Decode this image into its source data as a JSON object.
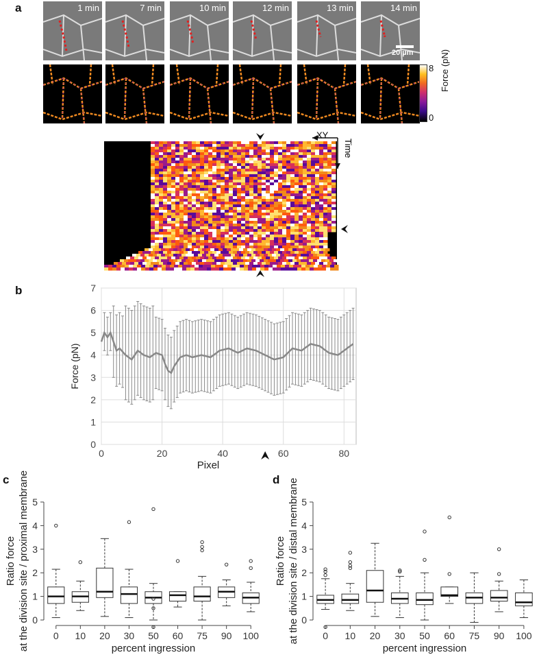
{
  "panels": {
    "a": "a",
    "b": "b",
    "c": "c",
    "d": "d"
  },
  "panel_a": {
    "timepoints": [
      "1 min",
      "7 min",
      "10 min",
      "12 min",
      "13 min",
      "14 min"
    ],
    "scalebar": "20 µm",
    "colorbar": {
      "label": "Force (pN)",
      "max": "8",
      "min": "0"
    },
    "kymo_axes": {
      "x": "XY",
      "y": "Time"
    }
  },
  "chart_data": [
    {
      "type": "line",
      "xlabel": "Pixel",
      "ylabel": "Force (pN)",
      "xlim": [
        0,
        84
      ],
      "ylim": [
        0,
        7
      ],
      "xticks": [
        "0",
        "20",
        "40",
        "60",
        "80"
      ],
      "yticks": [
        "0",
        "1",
        "2",
        "3",
        "4",
        "5",
        "6",
        "7"
      ],
      "grid": true,
      "mean_control_points": [
        [
          0,
          4.6
        ],
        [
          1,
          5.0
        ],
        [
          2,
          4.8
        ],
        [
          3,
          5.0
        ],
        [
          4,
          4.6
        ],
        [
          5,
          4.2
        ],
        [
          6,
          4.3
        ],
        [
          8,
          4.0
        ],
        [
          10,
          3.8
        ],
        [
          12,
          4.2
        ],
        [
          14,
          4.0
        ],
        [
          16,
          3.9
        ],
        [
          18,
          4.1
        ],
        [
          20,
          4.0
        ],
        [
          21,
          3.6
        ],
        [
          22,
          3.3
        ],
        [
          23,
          3.2
        ],
        [
          24,
          3.5
        ],
        [
          26,
          3.9
        ],
        [
          28,
          4.0
        ],
        [
          30,
          3.9
        ],
        [
          33,
          4.0
        ],
        [
          36,
          3.9
        ],
        [
          39,
          4.2
        ],
        [
          42,
          4.3
        ],
        [
          45,
          4.1
        ],
        [
          48,
          4.3
        ],
        [
          51,
          4.2
        ],
        [
          54,
          4.0
        ],
        [
          57,
          3.8
        ],
        [
          60,
          3.9
        ],
        [
          63,
          4.3
        ],
        [
          66,
          4.2
        ],
        [
          69,
          4.5
        ],
        [
          72,
          4.4
        ],
        [
          75,
          4.1
        ],
        [
          78,
          4.0
        ],
        [
          81,
          4.3
        ],
        [
          83,
          4.5
        ]
      ],
      "error_band": {
        "upper_approx": 5.7,
        "lower_approx": 2.6
      }
    },
    {
      "type": "box",
      "ylabel": "Ratio force\nat the division site / proximal membrane",
      "xlabel": "percent ingression",
      "categories": [
        "0",
        "10",
        "20",
        "30",
        "50",
        "60",
        "75",
        "90",
        "100"
      ],
      "ylim": [
        0,
        5
      ],
      "yticks": [
        "0",
        "1",
        "2",
        "3",
        "4",
        "5"
      ],
      "boxes": [
        {
          "min": 0.1,
          "q1": 0.7,
          "median": 1.0,
          "q3": 1.4,
          "max": 2.15,
          "outliers": [
            4.0
          ]
        },
        {
          "min": 0.4,
          "q1": 0.75,
          "median": 1.0,
          "q3": 1.2,
          "max": 1.65,
          "outliers": [
            2.45
          ]
        },
        {
          "min": 0.15,
          "q1": 0.95,
          "median": 1.2,
          "q3": 2.2,
          "max": 3.45,
          "outliers": []
        },
        {
          "min": 0.1,
          "q1": 0.7,
          "median": 1.1,
          "q3": 1.4,
          "max": 2.15,
          "outliers": [
            4.15
          ]
        },
        {
          "min": 0.0,
          "q1": 0.7,
          "median": 0.95,
          "q3": 1.2,
          "max": 1.55,
          "outliers": [
            0.5,
            0.9,
            4.7,
            -0.3
          ]
        },
        {
          "min": 0.55,
          "q1": 0.8,
          "median": 1.05,
          "q3": 1.2,
          "max": 1.2,
          "outliers": [
            2.5
          ]
        },
        {
          "min": 0.0,
          "q1": 0.8,
          "median": 1.0,
          "q3": 1.4,
          "max": 1.85,
          "outliers": [
            2.95,
            3.1,
            3.3
          ]
        },
        {
          "min": 0.6,
          "q1": 0.95,
          "median": 1.2,
          "q3": 1.4,
          "max": 1.7,
          "outliers": [
            2.35
          ]
        },
        {
          "min": 0.35,
          "q1": 0.7,
          "median": 0.95,
          "q3": 1.15,
          "max": 1.6,
          "outliers": [
            2.2,
            2.5
          ]
        }
      ]
    },
    {
      "type": "box",
      "ylabel": "Ratio force\nat the division site / distal membrane",
      "xlabel": "percent ingression",
      "categories": [
        "0",
        "10",
        "20",
        "30",
        "50",
        "60",
        "75",
        "90",
        "100"
      ],
      "ylim": [
        0,
        5
      ],
      "yticks": [
        "0",
        "1",
        "2",
        "3",
        "4",
        "5"
      ],
      "boxes": [
        {
          "min": 0.45,
          "q1": 0.7,
          "median": 0.85,
          "q3": 1.05,
          "max": 1.75,
          "outliers": [
            1.9,
            2.05,
            2.15,
            -0.3
          ]
        },
        {
          "min": 0.4,
          "q1": 0.7,
          "median": 0.85,
          "q3": 1.1,
          "max": 1.55,
          "outliers": [
            2.2,
            2.3,
            2.45,
            2.85
          ]
        },
        {
          "min": 0.15,
          "q1": 0.75,
          "median": 1.25,
          "q3": 2.1,
          "max": 3.25,
          "outliers": []
        },
        {
          "min": 0.1,
          "q1": 0.7,
          "median": 0.9,
          "q3": 1.15,
          "max": 1.85,
          "outliers": [
            2.05,
            2.1
          ]
        },
        {
          "min": 0.0,
          "q1": 0.65,
          "median": 0.85,
          "q3": 1.15,
          "max": 2.0,
          "outliers": [
            2.55,
            3.75
          ]
        },
        {
          "min": 0.7,
          "q1": 1.0,
          "median": 1.05,
          "q3": 1.4,
          "max": 1.4,
          "outliers": [
            1.95,
            4.35
          ]
        },
        {
          "min": -0.1,
          "q1": 0.7,
          "median": 0.95,
          "q3": 1.15,
          "max": 2.0,
          "outliers": []
        },
        {
          "min": 0.35,
          "q1": 0.8,
          "median": 0.95,
          "q3": 1.25,
          "max": 1.65,
          "outliers": [
            1.95,
            3.0
          ]
        },
        {
          "min": 0.1,
          "q1": 0.6,
          "median": 0.75,
          "q3": 1.15,
          "max": 1.7,
          "outliers": []
        }
      ]
    }
  ]
}
